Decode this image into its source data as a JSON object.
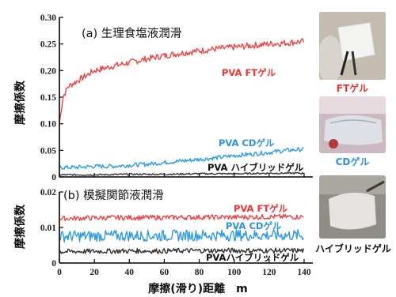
{
  "colors": {
    "ft": "#ee4444",
    "cd": "#2f9be6",
    "hybrid": "#333333"
  },
  "chart_data": [
    {
      "type": "line",
      "title": "(a) 生理食塩液潤滑",
      "ylabel": "摩擦係数",
      "xlim": [
        0,
        145
      ],
      "ylim": [
        0,
        0.3
      ],
      "yticks": [
        "0",
        "0.05",
        "0.10",
        "0.15",
        "0.20",
        "0.25",
        "0.30"
      ],
      "grid": false,
      "series": [
        {
          "name": "PVA FTゲル",
          "x": [
            0,
            2,
            5,
            10,
            15,
            20,
            30,
            40,
            50,
            60,
            70,
            80,
            90,
            100,
            110,
            120,
            130,
            140
          ],
          "values": [
            0.1,
            0.15,
            0.17,
            0.18,
            0.19,
            0.2,
            0.208,
            0.215,
            0.222,
            0.228,
            0.233,
            0.237,
            0.241,
            0.244,
            0.247,
            0.25,
            0.252,
            0.255
          ]
        },
        {
          "name": "PVA CDゲル",
          "x": [
            0,
            10,
            20,
            30,
            40,
            50,
            60,
            70,
            80,
            90,
            100,
            110,
            120,
            130,
            140
          ],
          "values": [
            0.018,
            0.018,
            0.02,
            0.02,
            0.022,
            0.024,
            0.027,
            0.03,
            0.033,
            0.036,
            0.04,
            0.043,
            0.046,
            0.05,
            0.052
          ]
        },
        {
          "name": "PVA ハイブリッドゲル",
          "x": [
            0,
            20,
            40,
            60,
            80,
            100,
            120,
            140
          ],
          "values": [
            0.004,
            0.004,
            0.005,
            0.005,
            0.006,
            0.006,
            0.007,
            0.007
          ]
        }
      ]
    },
    {
      "type": "line",
      "title": "(b) 模擬関節液潤滑",
      "ylabel": "摩擦係数",
      "xlabel": "摩擦(滑り)距離　m",
      "xlim": [
        0,
        145
      ],
      "ylim": [
        0,
        0.02
      ],
      "xticks": [
        "0",
        "20",
        "40",
        "60",
        "80",
        "100",
        "120",
        "140"
      ],
      "yticks": [
        "0",
        "0.01",
        "0.02"
      ],
      "grid": false,
      "series": [
        {
          "name": "PVA FTゲル",
          "x": [
            0,
            20,
            40,
            60,
            80,
            100,
            120,
            140
          ],
          "values": [
            0.0125,
            0.0127,
            0.0128,
            0.0128,
            0.0129,
            0.0129,
            0.013,
            0.013
          ]
        },
        {
          "name": "PVA CDゲル",
          "x": [
            0,
            20,
            40,
            60,
            80,
            100,
            120,
            140
          ],
          "values": [
            0.0075,
            0.0076,
            0.0077,
            0.0077,
            0.0078,
            0.0078,
            0.0078,
            0.0078
          ]
        },
        {
          "name": "PVAハイブリッドゲル",
          "x": [
            0,
            20,
            40,
            60,
            80,
            100,
            120,
            140
          ],
          "values": [
            0.0032,
            0.0033,
            0.0034,
            0.0034,
            0.0035,
            0.0035,
            0.0035,
            0.0035
          ]
        }
      ]
    }
  ],
  "photos": [
    {
      "caption": "FTゲル",
      "color": "#ee3333"
    },
    {
      "caption": "CDゲル",
      "color": "#2f8fe0"
    },
    {
      "caption": "ハイブリッドゲル",
      "color": "#111111"
    }
  ]
}
